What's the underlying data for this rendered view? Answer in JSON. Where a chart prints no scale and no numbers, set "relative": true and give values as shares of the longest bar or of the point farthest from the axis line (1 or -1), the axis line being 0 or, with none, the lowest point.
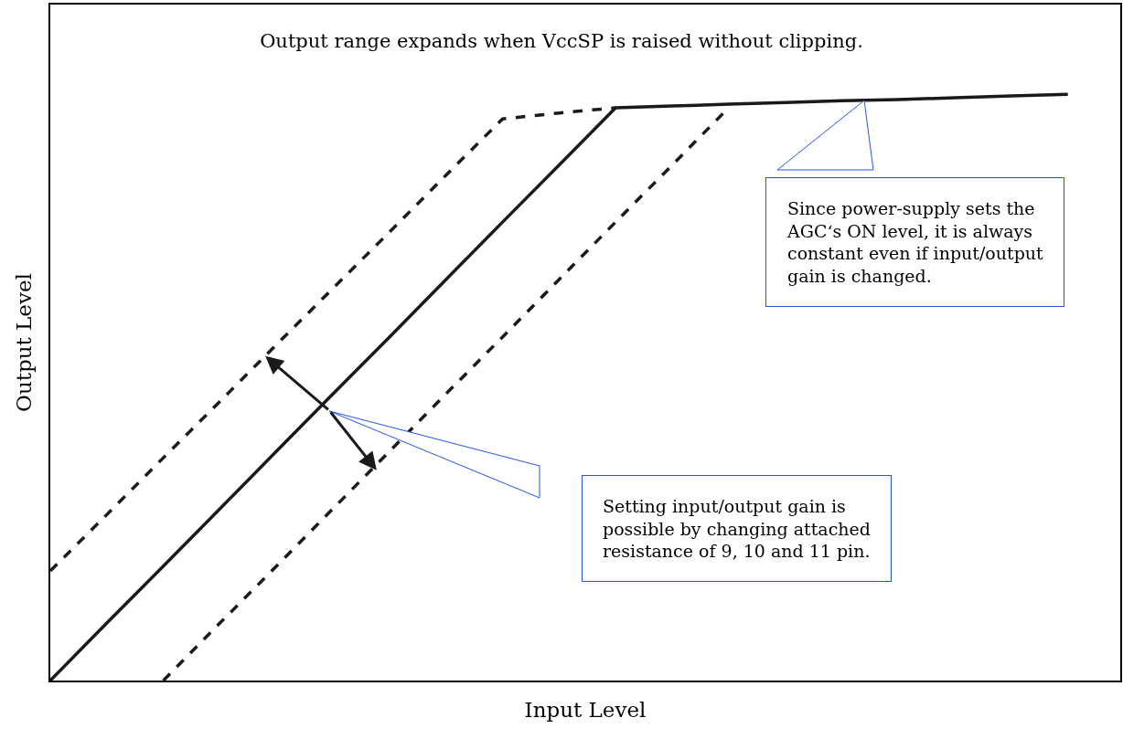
{
  "chart_data": {
    "type": "line",
    "title": "Output range expands when VccSP is raised without clipping.",
    "xlabel": "Input Level",
    "ylabel": "Output Level",
    "relative": true,
    "marker": "none",
    "categories": [
      null,
      null,
      null,
      null,
      null,
      null,
      null,
      null,
      null,
      null,
      null,
      null,
      null,
      null,
      null,
      null,
      null,
      null,
      null
    ],
    "series": [
      {
        "color": "#1a1a1a",
        "line_style": "solid",
        "values": [
          0,
          0.098,
          0.195,
          0.293,
          0.391,
          0.489,
          0.586,
          0.684,
          0.782,
          0.879,
          0.977,
          0.98,
          0.983,
          0.986,
          0.989,
          0.991,
          0.994,
          0.997,
          1
        ]
      },
      {
        "color": "#1a1a1a",
        "line_style": "dashed",
        "values": [
          0.187,
          0.283,
          0.38,
          0.476,
          0.573,
          0.669,
          0.765,
          0.862,
          0.958,
          0.968,
          0.977,
          null,
          null,
          null,
          null,
          null,
          null,
          null,
          null
        ]
      },
      {
        "color": "#1a1a1a",
        "line_style": "dashed",
        "values": [
          null,
          null,
          0,
          0.098,
          0.195,
          0.293,
          0.391,
          0.489,
          0.586,
          0.684,
          0.782,
          0.879,
          0.977,
          null,
          null,
          null,
          null,
          null,
          null
        ]
      }
    ],
    "annotations": [
      "Since power-supply sets the AGC‘s ON level, it is always constant even if input/output gain is changed.",
      "Setting input/output gain is possible by changing attached resistance of 9, 10 and 11 pin."
    ]
  }
}
